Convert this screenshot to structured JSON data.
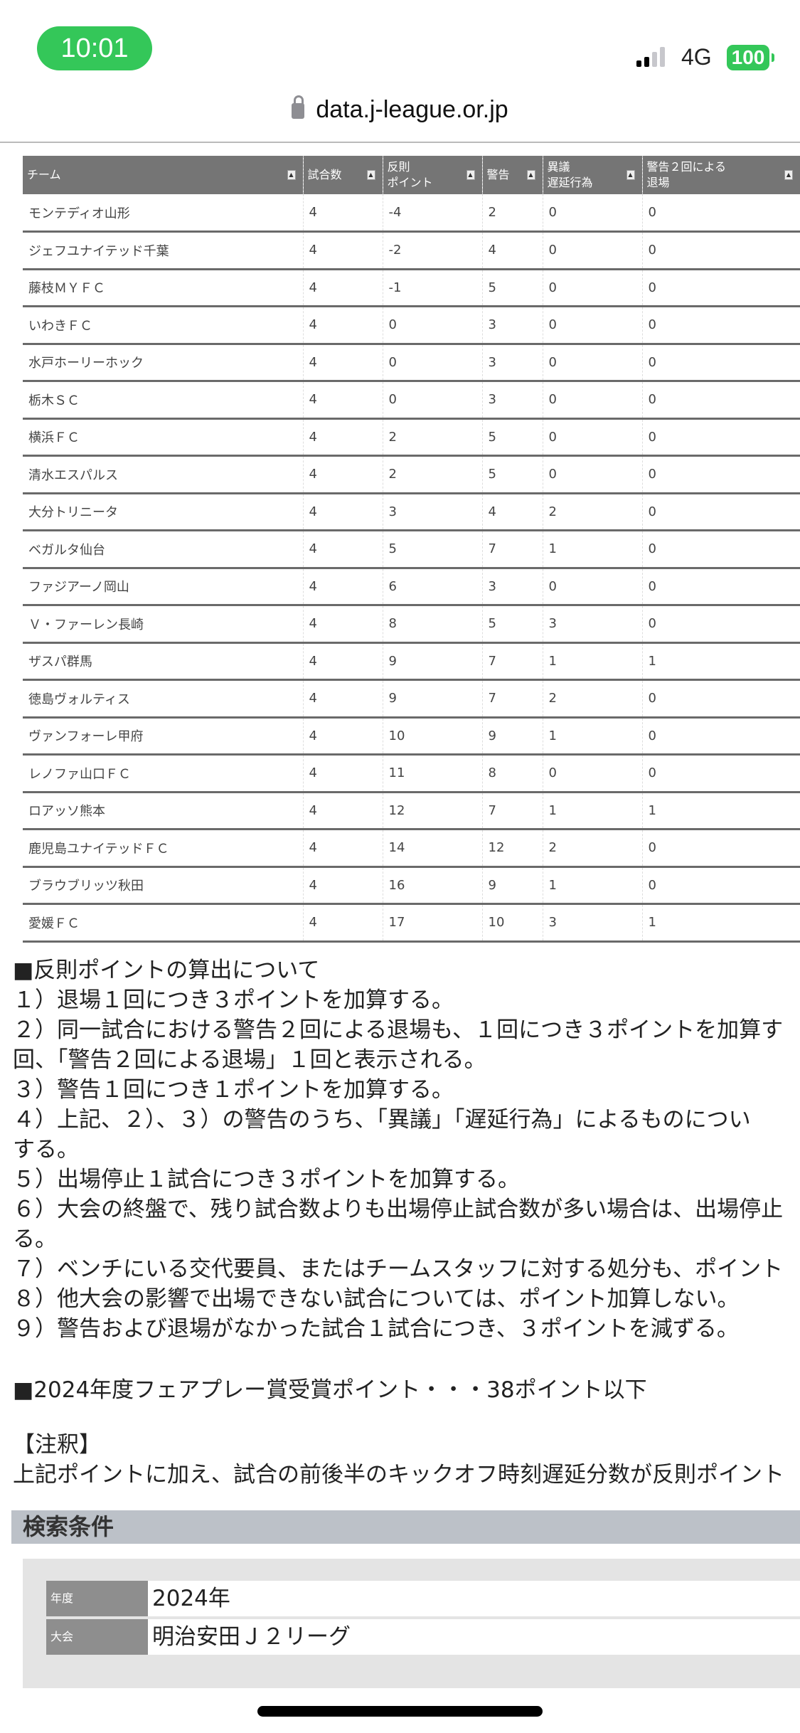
{
  "status": {
    "time": "10:01",
    "network": "4G",
    "battery": "100",
    "signal_bars_on": 2,
    "signal_bars_total": 4,
    "accent": "#34c759"
  },
  "browser": {
    "url": "data.j-league.or.jp"
  },
  "table": {
    "headers": [
      "チーム",
      "試合数",
      "反則\nポイント",
      "警告",
      "異議\n遅延行為",
      "警告２回による\n退場"
    ],
    "rows": [
      [
        "モンテディオ山形",
        "4",
        "-4",
        "2",
        "0",
        "0"
      ],
      [
        "ジェフユナイテッド千葉",
        "4",
        "-2",
        "4",
        "0",
        "0"
      ],
      [
        "藤枝ＭＹＦＣ",
        "4",
        "-1",
        "5",
        "0",
        "0"
      ],
      [
        "いわきＦＣ",
        "4",
        "0",
        "3",
        "0",
        "0"
      ],
      [
        "水戸ホーリーホック",
        "4",
        "0",
        "3",
        "0",
        "0"
      ],
      [
        "栃木ＳＣ",
        "4",
        "0",
        "3",
        "0",
        "0"
      ],
      [
        "横浜ＦＣ",
        "4",
        "2",
        "5",
        "0",
        "0"
      ],
      [
        "清水エスパルス",
        "4",
        "2",
        "5",
        "0",
        "0"
      ],
      [
        "大分トリニータ",
        "4",
        "3",
        "4",
        "2",
        "0"
      ],
      [
        "ベガルタ仙台",
        "4",
        "5",
        "7",
        "1",
        "0"
      ],
      [
        "ファジアーノ岡山",
        "4",
        "6",
        "3",
        "0",
        "0"
      ],
      [
        "Ｖ・ファーレン長崎",
        "4",
        "8",
        "5",
        "3",
        "0"
      ],
      [
        "ザスパ群馬",
        "4",
        "9",
        "7",
        "1",
        "1"
      ],
      [
        "徳島ヴォルティス",
        "4",
        "9",
        "7",
        "2",
        "0"
      ],
      [
        "ヴァンフォーレ甲府",
        "4",
        "10",
        "9",
        "1",
        "0"
      ],
      [
        "レノファ山口ＦＣ",
        "4",
        "11",
        "8",
        "0",
        "0"
      ],
      [
        "ロアッソ熊本",
        "4",
        "12",
        "7",
        "1",
        "1"
      ],
      [
        "鹿児島ユナイテッドＦＣ",
        "4",
        "14",
        "12",
        "2",
        "0"
      ],
      [
        "ブラウブリッツ秋田",
        "4",
        "16",
        "9",
        "1",
        "0"
      ],
      [
        "愛媛ＦＣ",
        "4",
        "17",
        "10",
        "3",
        "1"
      ]
    ]
  },
  "notes": {
    "lines": [
      "■反則ポイントの算出について",
      "１）退場１回につき３ポイントを加算する。",
      "２）同一試合における警告２回による退場も、１回につき３ポイントを加算す",
      "回、「警告２回による退場」１回と表示される。",
      "３）警告１回につき１ポイントを加算する。",
      "４）上記、２）、３）の警告のうち、「異議」「遅延行為」によるものについ",
      "する。",
      "５）出場停止１試合につき３ポイントを加算する。",
      "６）大会の終盤で、残り試合数よりも出場停止試合数が多い場合は、出場停止",
      "る。",
      "７）ベンチにいる交代要員、またはチームスタッフに対する処分も、ポイント",
      "８）他大会の影響で出場できない試合については、ポイント加算しない。",
      "９）警告および退場がなかった試合１試合につき、３ポイントを減ずる。"
    ],
    "fairplay": "■2024年度フェアプレー賞受賞ポイント・・・38ポイント以下",
    "annotation_title": "【注釈】",
    "annotation_text": "上記ポイントに加え、試合の前後半のキックオフ時刻遅延分数が反則ポイント"
  },
  "search": {
    "title": "検索条件",
    "rows": [
      {
        "label": "年度",
        "value": "2024年"
      },
      {
        "label": "大会",
        "value": "明治安田Ｊ２リーグ"
      }
    ]
  }
}
